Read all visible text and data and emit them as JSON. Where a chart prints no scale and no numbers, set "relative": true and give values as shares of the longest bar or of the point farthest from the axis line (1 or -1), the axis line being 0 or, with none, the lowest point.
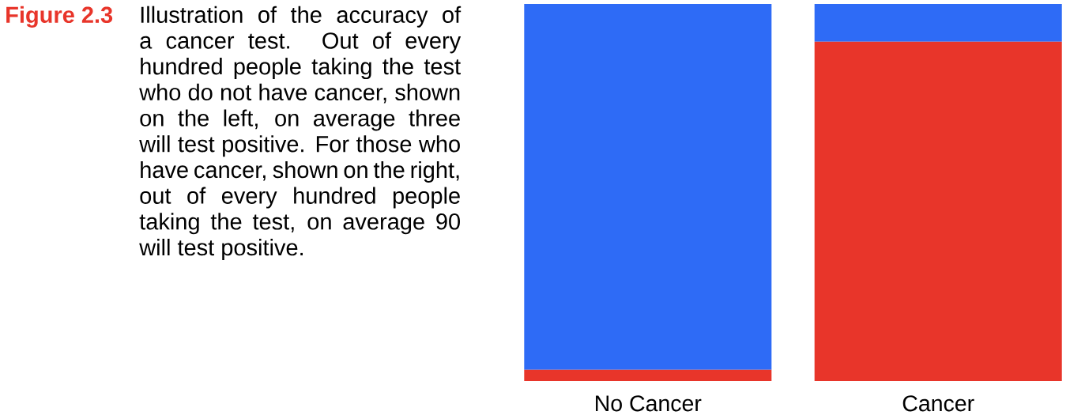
{
  "chart_data": {
    "type": "bar",
    "title": "Figure 2.3",
    "annotations": [
      "Illustration of the accuracy of a cancer test. Out of every hundred people taking the test who do not have cancer, shown on the left, on average three will test positive. For those who have cancer, shown on the right, out of every hundred people taking the test, on average 90 will test positive."
    ],
    "categories": [
      "No Cancer",
      "Cancer"
    ],
    "stacked": true,
    "relative": true,
    "series": [
      {
        "color": "#e8352a",
        "values": [
          0.03,
          0.9
        ]
      },
      {
        "color": "#2e6bf6",
        "values": [
          0.97,
          0.1
        ]
      }
    ]
  }
}
